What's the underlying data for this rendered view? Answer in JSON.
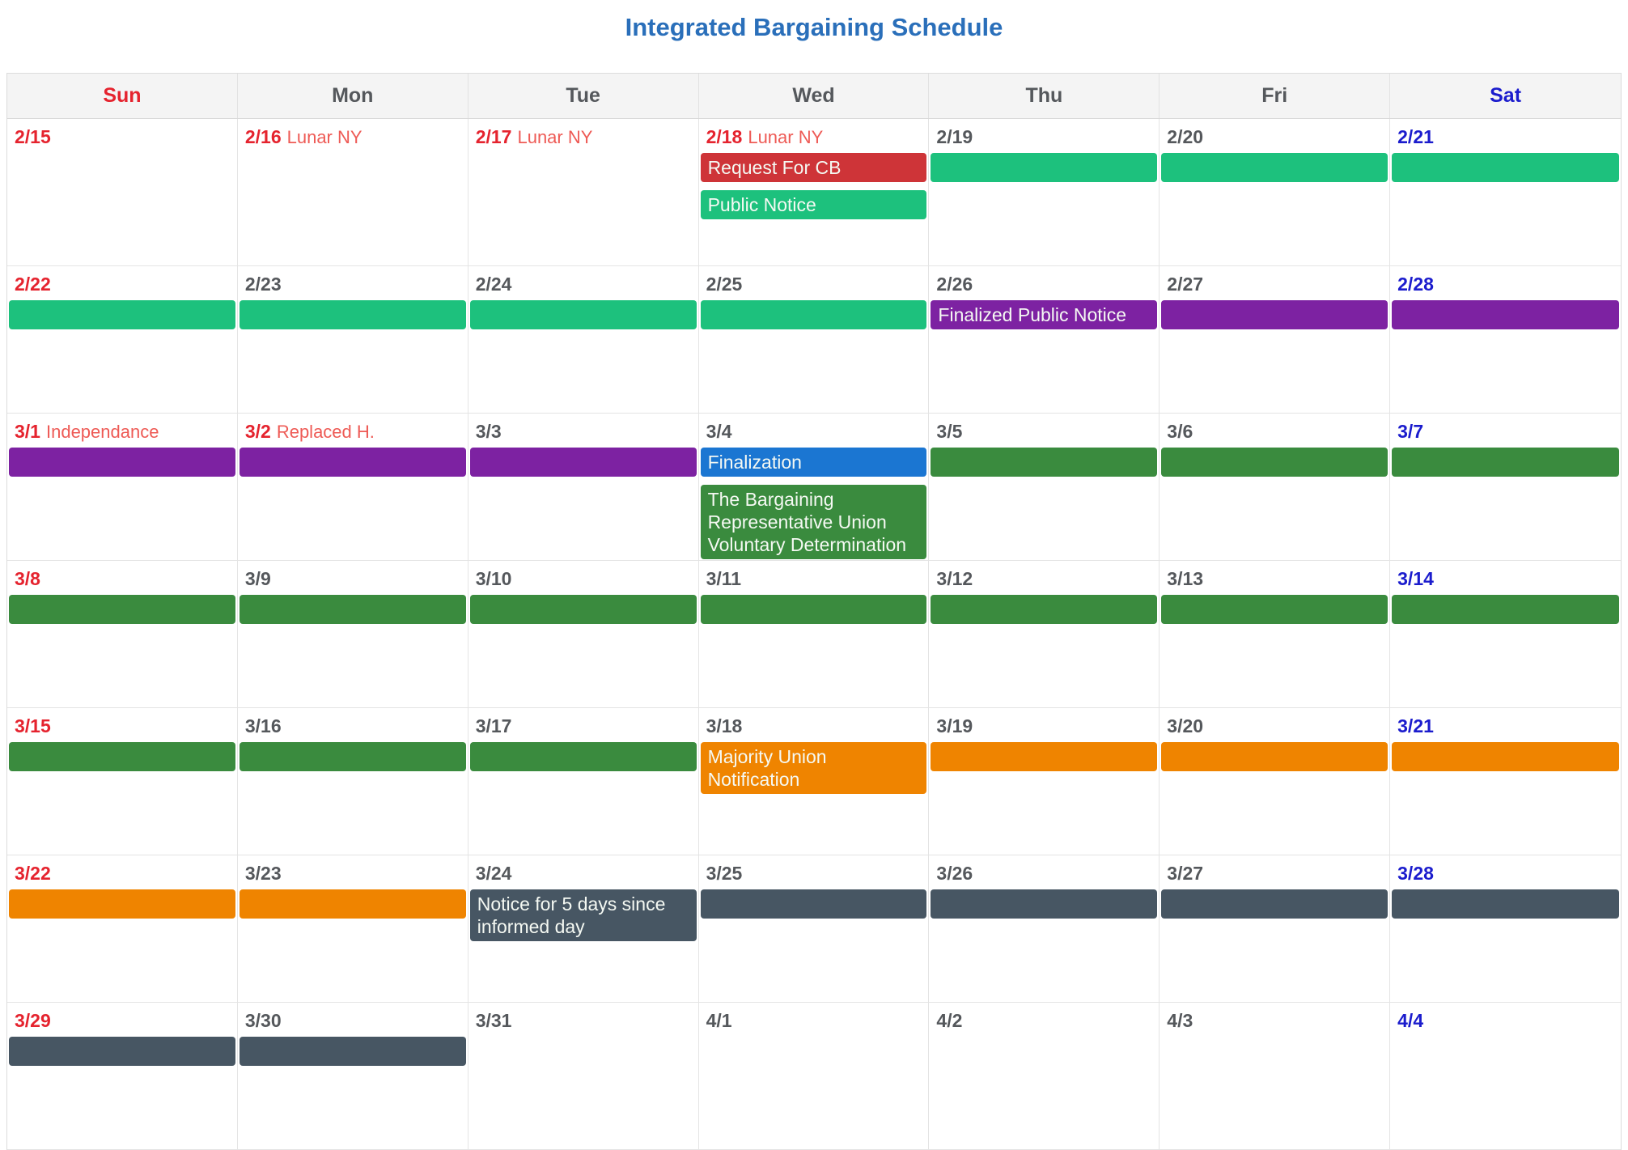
{
  "title": "Integrated Bargaining Schedule",
  "theme": {
    "title_color": "#2a6fba",
    "header_bg": "#f4f4f4",
    "sunday_color": "#e5232e",
    "saturday_color": "#1b1ccd",
    "weekday_color": "#55585c",
    "holiday_label_color": "#ee5a55",
    "grid_border_color": "#e4e4e4",
    "event_text_color": "#f5f9f3",
    "event_colors": {
      "request-for-cb": "#ce3438",
      "public-notice": "#1dc17d",
      "finalized-public-notice": "#7d22a2",
      "finalization": "#1b76d2",
      "voluntary-determination": "#3a8b3e",
      "majority-union-notification": "#ef8400",
      "notice-5-days": "#475663"
    }
  },
  "calendar": {
    "day_headers": [
      "Sun",
      "Mon",
      "Tue",
      "Wed",
      "Thu",
      "Fri",
      "Sat"
    ],
    "weeks": [
      {
        "days": [
          {
            "date": "2/15",
            "color": "red",
            "events": []
          },
          {
            "date": "2/16",
            "color": "red",
            "holiday": "Lunar NY",
            "events": []
          },
          {
            "date": "2/17",
            "color": "red",
            "holiday": "Lunar NY",
            "events": []
          },
          {
            "date": "2/18",
            "color": "red",
            "holiday": "Lunar NY",
            "events": [
              {
                "type": "request-for-cb",
                "label": "Request For CB"
              },
              {
                "type": "public-notice",
                "label": "Public Notice"
              }
            ]
          },
          {
            "date": "2/19",
            "color": "gray",
            "events": [
              {
                "type": "public-notice",
                "label": ""
              }
            ]
          },
          {
            "date": "2/20",
            "color": "gray",
            "events": [
              {
                "type": "public-notice",
                "label": ""
              }
            ]
          },
          {
            "date": "2/21",
            "color": "blue",
            "events": [
              {
                "type": "public-notice",
                "label": ""
              }
            ]
          }
        ]
      },
      {
        "days": [
          {
            "date": "2/22",
            "color": "red",
            "events": [
              {
                "type": "public-notice",
                "label": ""
              }
            ]
          },
          {
            "date": "2/23",
            "color": "gray",
            "events": [
              {
                "type": "public-notice",
                "label": ""
              }
            ]
          },
          {
            "date": "2/24",
            "color": "gray",
            "events": [
              {
                "type": "public-notice",
                "label": ""
              }
            ]
          },
          {
            "date": "2/25",
            "color": "gray",
            "events": [
              {
                "type": "public-notice",
                "label": ""
              }
            ]
          },
          {
            "date": "2/26",
            "color": "gray",
            "events": [
              {
                "type": "finalized-public-notice",
                "label": "Finalized Public Notice"
              }
            ]
          },
          {
            "date": "2/27",
            "color": "gray",
            "events": [
              {
                "type": "finalized-public-notice",
                "label": ""
              }
            ]
          },
          {
            "date": "2/28",
            "color": "blue",
            "events": [
              {
                "type": "finalized-public-notice",
                "label": ""
              }
            ]
          }
        ]
      },
      {
        "days": [
          {
            "date": "3/1",
            "color": "red",
            "holiday": "Independance",
            "events": [
              {
                "type": "finalized-public-notice",
                "label": ""
              }
            ]
          },
          {
            "date": "3/2",
            "color": "red",
            "holiday": "Replaced H.",
            "events": [
              {
                "type": "finalized-public-notice",
                "label": ""
              }
            ]
          },
          {
            "date": "3/3",
            "color": "gray",
            "events": [
              {
                "type": "finalized-public-notice",
                "label": ""
              }
            ]
          },
          {
            "date": "3/4",
            "color": "gray",
            "events": [
              {
                "type": "finalization",
                "label": "Finalization"
              },
              {
                "type": "voluntary-determination",
                "label": "The Bargaining Representative Union Voluntary Determination"
              }
            ]
          },
          {
            "date": "3/5",
            "color": "gray",
            "events": [
              {
                "type": "voluntary-determination",
                "label": ""
              }
            ]
          },
          {
            "date": "3/6",
            "color": "gray",
            "events": [
              {
                "type": "voluntary-determination",
                "label": ""
              }
            ]
          },
          {
            "date": "3/7",
            "color": "blue",
            "events": [
              {
                "type": "voluntary-determination",
                "label": ""
              }
            ]
          }
        ]
      },
      {
        "days": [
          {
            "date": "3/8",
            "color": "red",
            "events": [
              {
                "type": "voluntary-determination",
                "label": ""
              }
            ]
          },
          {
            "date": "3/9",
            "color": "gray",
            "events": [
              {
                "type": "voluntary-determination",
                "label": ""
              }
            ]
          },
          {
            "date": "3/10",
            "color": "gray",
            "events": [
              {
                "type": "voluntary-determination",
                "label": ""
              }
            ]
          },
          {
            "date": "3/11",
            "color": "gray",
            "events": [
              {
                "type": "voluntary-determination",
                "label": ""
              }
            ]
          },
          {
            "date": "3/12",
            "color": "gray",
            "events": [
              {
                "type": "voluntary-determination",
                "label": ""
              }
            ]
          },
          {
            "date": "3/13",
            "color": "gray",
            "events": [
              {
                "type": "voluntary-determination",
                "label": ""
              }
            ]
          },
          {
            "date": "3/14",
            "color": "blue",
            "events": [
              {
                "type": "voluntary-determination",
                "label": ""
              }
            ]
          }
        ]
      },
      {
        "days": [
          {
            "date": "3/15",
            "color": "red",
            "events": [
              {
                "type": "voluntary-determination",
                "label": ""
              }
            ]
          },
          {
            "date": "3/16",
            "color": "gray",
            "events": [
              {
                "type": "voluntary-determination",
                "label": ""
              }
            ]
          },
          {
            "date": "3/17",
            "color": "gray",
            "events": [
              {
                "type": "voluntary-determination",
                "label": ""
              }
            ]
          },
          {
            "date": "3/18",
            "color": "gray",
            "events": [
              {
                "type": "majority-union-notification",
                "label": "Majority Union Notification"
              }
            ]
          },
          {
            "date": "3/19",
            "color": "gray",
            "events": [
              {
                "type": "majority-union-notification",
                "label": ""
              }
            ]
          },
          {
            "date": "3/20",
            "color": "gray",
            "events": [
              {
                "type": "majority-union-notification",
                "label": ""
              }
            ]
          },
          {
            "date": "3/21",
            "color": "blue",
            "events": [
              {
                "type": "majority-union-notification",
                "label": ""
              }
            ]
          }
        ]
      },
      {
        "days": [
          {
            "date": "3/22",
            "color": "red",
            "events": [
              {
                "type": "majority-union-notification",
                "label": ""
              }
            ]
          },
          {
            "date": "3/23",
            "color": "gray",
            "events": [
              {
                "type": "majority-union-notification",
                "label": ""
              }
            ]
          },
          {
            "date": "3/24",
            "color": "gray",
            "events": [
              {
                "type": "notice-5-days",
                "label": "Notice for 5 days since informed day"
              }
            ]
          },
          {
            "date": "3/25",
            "color": "gray",
            "events": [
              {
                "type": "notice-5-days",
                "label": ""
              }
            ]
          },
          {
            "date": "3/26",
            "color": "gray",
            "events": [
              {
                "type": "notice-5-days",
                "label": ""
              }
            ]
          },
          {
            "date": "3/27",
            "color": "gray",
            "events": [
              {
                "type": "notice-5-days",
                "label": ""
              }
            ]
          },
          {
            "date": "3/28",
            "color": "blue",
            "events": [
              {
                "type": "notice-5-days",
                "label": ""
              }
            ]
          }
        ]
      },
      {
        "days": [
          {
            "date": "3/29",
            "color": "red",
            "events": [
              {
                "type": "notice-5-days",
                "label": ""
              }
            ]
          },
          {
            "date": "3/30",
            "color": "gray",
            "events": [
              {
                "type": "notice-5-days",
                "label": ""
              }
            ]
          },
          {
            "date": "3/31",
            "color": "gray",
            "events": []
          },
          {
            "date": "4/1",
            "color": "gray",
            "events": []
          },
          {
            "date": "4/2",
            "color": "gray",
            "events": []
          },
          {
            "date": "4/3",
            "color": "gray",
            "events": []
          },
          {
            "date": "4/4",
            "color": "blue",
            "events": []
          }
        ]
      }
    ]
  }
}
